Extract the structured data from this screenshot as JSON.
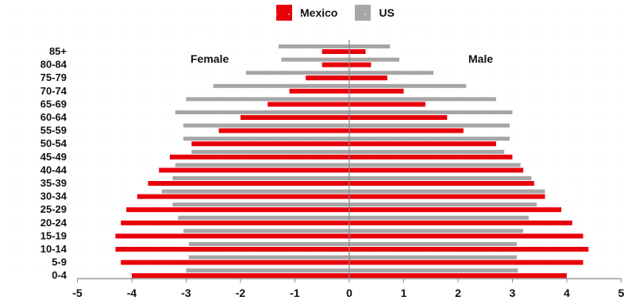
{
  "legend": {
    "mexico_label": "Mexico",
    "us_label": "US",
    "mexico_color": "#e8000b",
    "us_color": "#a6a6a6"
  },
  "labels": {
    "female": "Female",
    "male": "Male"
  },
  "chart_data": {
    "type": "bar",
    "orientation": "horizontal",
    "categories": [
      "85+",
      "80-84",
      "75-79",
      "70-74",
      "65-69",
      "60-64",
      "55-59",
      "50-54",
      "45-49",
      "40-44",
      "35-39",
      "30-34",
      "25-29",
      "20-24",
      "15-19",
      "10-14",
      "5-9",
      "0-4"
    ],
    "series": [
      {
        "name": "US",
        "female": [
          -1.3,
          -1.25,
          -1.9,
          -2.5,
          -3.0,
          -3.2,
          -3.05,
          -3.05,
          -2.9,
          -3.2,
          -3.25,
          -3.45,
          -3.25,
          -3.15,
          -3.05,
          -2.95,
          -2.95,
          -3.0
        ],
        "male": [
          0.75,
          0.92,
          1.55,
          2.15,
          2.7,
          3.0,
          2.95,
          2.95,
          2.85,
          3.15,
          3.35,
          3.6,
          3.45,
          3.3,
          3.2,
          3.08,
          3.08,
          3.1
        ]
      },
      {
        "name": "Mexico",
        "female": [
          -0.5,
          -0.5,
          -0.8,
          -1.1,
          -1.5,
          -2.0,
          -2.4,
          -2.9,
          -3.3,
          -3.5,
          -3.7,
          -3.9,
          -4.1,
          -4.2,
          -4.3,
          -4.3,
          -4.2,
          -4.0
        ],
        "male": [
          0.3,
          0.4,
          0.7,
          1.0,
          1.4,
          1.8,
          2.1,
          2.7,
          3.0,
          3.2,
          3.4,
          3.6,
          3.9,
          4.1,
          4.3,
          4.4,
          4.3,
          4.0
        ]
      }
    ],
    "xlim": [
      -5,
      5
    ],
    "xticks": [
      -5,
      -4,
      -3,
      -2,
      -1,
      0,
      1,
      2,
      3,
      4,
      5
    ],
    "legend_position": "top-center",
    "grid": false
  }
}
